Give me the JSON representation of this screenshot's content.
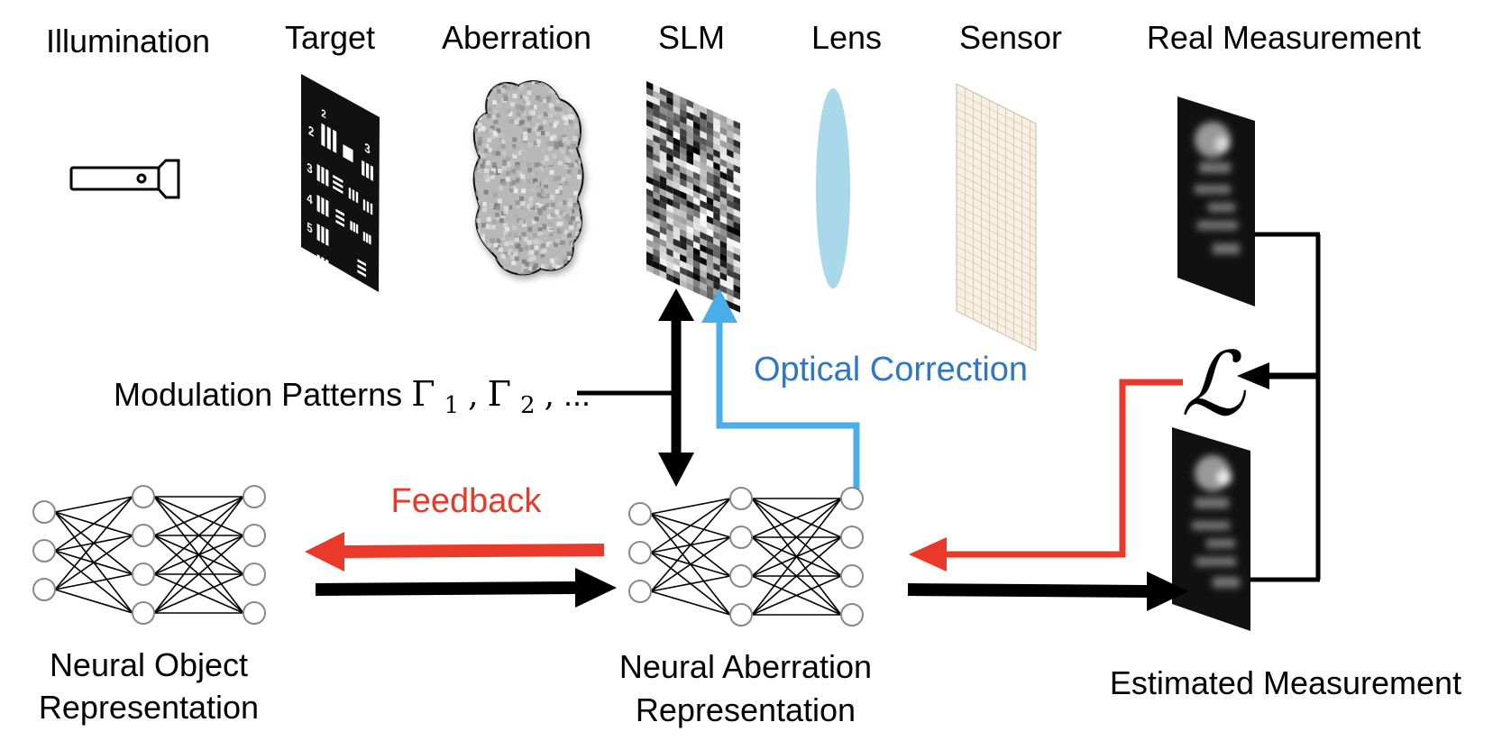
{
  "headers": {
    "illumination": "Illumination",
    "target": "Target",
    "aberration": "Aberration",
    "slm": "SLM",
    "lens": "Lens",
    "sensor": "Sensor",
    "real_measurement": "Real Measurement"
  },
  "labels": {
    "modulation_patterns": "Modulation Patterns",
    "gamma": "Γ",
    "sub1": "1",
    "sub2": "2",
    "sep": ",",
    "ellipsis": "...",
    "optical_correction": "Optical Correction",
    "feedback": "Feedback",
    "loss": "ℒ",
    "neural_object_1": "Neural Object",
    "neural_object_2": "Representation",
    "neural_aberration_1": "Neural Aberration",
    "neural_aberration_2": "Representation",
    "estimated_measurement": "Estimated Measurement"
  },
  "target_numbers": [
    "2",
    "2",
    "3",
    "3",
    "4",
    "5",
    "6"
  ],
  "colors": {
    "black": "#000000",
    "blue": "#4aaee8",
    "blue_text": "#2f77c4",
    "red": "#e8392a",
    "lens": "#a8d8ea",
    "node_stroke": "#888888"
  },
  "icons": [
    "flashlight-icon",
    "target-chart-icon",
    "aberration-blob-icon",
    "slm-pattern-icon",
    "lens-icon",
    "sensor-grid-icon",
    "measurement-image-icon"
  ]
}
